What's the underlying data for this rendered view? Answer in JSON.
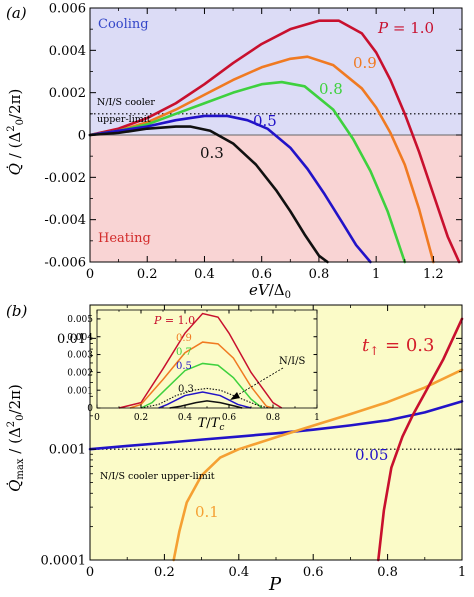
{
  "chart_data": [
    {
      "type": "line",
      "panel_label": "(a)",
      "xlabel": "eV/Δ₀",
      "ylabel": "Q̇ / (Δ₀²/2π)",
      "xlim": [
        0,
        1.3
      ],
      "ylim": [
        -0.006,
        0.006
      ],
      "x_ticks": [
        "0",
        "0.2",
        "0.4",
        "0.6",
        "0.8",
        "1",
        "1.2"
      ],
      "x_tick_values": [
        0,
        0.2,
        0.4,
        0.6,
        0.8,
        1.0,
        1.2
      ],
      "y_ticks": [
        "-0.006",
        "-0.004",
        "-0.002",
        "0",
        "0.002",
        "0.004",
        "0.006"
      ],
      "y_tick_values": [
        -0.006,
        -0.004,
        -0.002,
        0,
        0.002,
        0.004,
        0.006
      ],
      "regions": [
        {
          "label": "Cooling",
          "y_from": 0,
          "y_to": 0.006,
          "color": "#dcdcf6",
          "label_color": "#3346c8"
        },
        {
          "label": "Heating",
          "y_from": -0.006,
          "y_to": 0,
          "color": "#f9d4d4",
          "label_color": "#d22a2a"
        }
      ],
      "reference_line": {
        "y": 0.001,
        "style": "dotted",
        "label_line1": "N/I/S cooler",
        "label_line2": "upper-limit"
      },
      "series": [
        {
          "name": "P = 1.0",
          "color": "#c8102e",
          "x": [
            0,
            0.1,
            0.2,
            0.3,
            0.4,
            0.5,
            0.6,
            0.7,
            0.8,
            0.87,
            0.95,
            1.0,
            1.05,
            1.1,
            1.15,
            1.2,
            1.25,
            1.29
          ],
          "y": [
            0,
            0.0003,
            0.0008,
            0.0015,
            0.0024,
            0.0034,
            0.0043,
            0.005,
            0.0054,
            0.0054,
            0.0048,
            0.0039,
            0.0026,
            0.001,
            -0.0008,
            -0.0028,
            -0.0048,
            -0.006
          ]
        },
        {
          "name": "0.9",
          "color": "#f07a22",
          "x": [
            0,
            0.1,
            0.2,
            0.3,
            0.4,
            0.5,
            0.6,
            0.7,
            0.76,
            0.85,
            0.95,
            1.0,
            1.05,
            1.1,
            1.15,
            1.2
          ],
          "y": [
            0,
            0.0002,
            0.0006,
            0.0012,
            0.0019,
            0.0026,
            0.0032,
            0.0036,
            0.0037,
            0.0033,
            0.0022,
            0.0013,
            0.0001,
            -0.0014,
            -0.0035,
            -0.006
          ]
        },
        {
          "name": "0.8",
          "color": "#3ed13e",
          "x": [
            0,
            0.1,
            0.2,
            0.3,
            0.4,
            0.5,
            0.6,
            0.67,
            0.75,
            0.85,
            0.92,
            0.98,
            1.04,
            1.1
          ],
          "y": [
            0,
            0.0002,
            0.0005,
            0.001,
            0.0015,
            0.002,
            0.0024,
            0.0025,
            0.0023,
            0.0012,
            -0.0002,
            -0.0017,
            -0.0036,
            -0.006
          ]
        },
        {
          "name": "0.5",
          "color": "#2213c8",
          "x": [
            0,
            0.1,
            0.2,
            0.3,
            0.4,
            0.48,
            0.55,
            0.62,
            0.7,
            0.76,
            0.82,
            0.88,
            0.93,
            0.98
          ],
          "y": [
            0,
            0.0002,
            0.0004,
            0.0007,
            0.0009,
            0.0009,
            0.0007,
            0.0003,
            -0.0006,
            -0.0016,
            -0.0028,
            -0.0041,
            -0.0052,
            -0.006
          ]
        },
        {
          "name": "0.3",
          "color": "#111111",
          "x": [
            0,
            0.1,
            0.2,
            0.3,
            0.35,
            0.42,
            0.5,
            0.58,
            0.65,
            0.7,
            0.75,
            0.8,
            0.83
          ],
          "y": [
            0,
            0.0001,
            0.0003,
            0.0004,
            0.0004,
            0.0002,
            -0.0004,
            -0.0014,
            -0.0026,
            -0.0036,
            -0.0047,
            -0.0057,
            -0.006
          ]
        }
      ]
    },
    {
      "type": "line",
      "panel_label": "(b)",
      "xlabel": "P",
      "ylabel": "Q̇max / (Δ₀²/2π)",
      "xlim": [
        0,
        1
      ],
      "ylim": [
        0.0001,
        0.02
      ],
      "y_scale": "log",
      "x_ticks": [
        "0",
        "0.2",
        "0.4",
        "0.6",
        "0.8",
        "1"
      ],
      "x_tick_values": [
        0,
        0.2,
        0.4,
        0.6,
        0.8,
        1.0
      ],
      "y_ticks": [
        "0.0001",
        "0.001",
        "0.01"
      ],
      "y_tick_values": [
        0.0001,
        0.001,
        0.01
      ],
      "background": "#fbfbc8",
      "annotation": "t↑ = 0.3",
      "reference_line": {
        "y": 0.001,
        "style": "dotted",
        "label": "N/I/S cooler upper-limit"
      },
      "series": [
        {
          "name": "0.05",
          "color": "#2213c8",
          "x": [
            0,
            0.1,
            0.2,
            0.3,
            0.4,
            0.5,
            0.6,
            0.7,
            0.8,
            0.9,
            1.0
          ],
          "y": [
            0.001,
            0.00107,
            0.00114,
            0.00122,
            0.0013,
            0.00139,
            0.0015,
            0.00164,
            0.00182,
            0.00215,
            0.0027
          ]
        },
        {
          "name": "0.1",
          "color": "#f5a033",
          "x": [
            0.225,
            0.24,
            0.26,
            0.3,
            0.35,
            0.4,
            0.5,
            0.6,
            0.7,
            0.8,
            0.9,
            1.0
          ],
          "y": [
            0.0001,
            0.00018,
            0.00033,
            0.00058,
            0.00084,
            0.001,
            0.00128,
            0.00163,
            0.00207,
            0.00266,
            0.0036,
            0.0052
          ]
        },
        {
          "name": "",
          "color": "#c8102e",
          "x": [
            0.775,
            0.79,
            0.81,
            0.84,
            0.87,
            0.9,
            0.95,
            1.0
          ],
          "y": [
            0.0001,
            0.00028,
            0.00068,
            0.0013,
            0.0021,
            0.0032,
            0.0065,
            0.015
          ]
        }
      ],
      "inset": {
        "xlabel": "T/Tc",
        "xlim": [
          0,
          1
        ],
        "ylim": [
          0,
          0.0055
        ],
        "x_ticks": [
          "0",
          "0.2",
          "0.4",
          "0.6",
          "0.8",
          "1"
        ],
        "x_tick_values": [
          0,
          0.2,
          0.4,
          0.6,
          0.8,
          1.0
        ],
        "y_ticks": [
          "0",
          "0.001",
          "0.002",
          "0.003",
          "0.004",
          "0.005"
        ],
        "y_tick_values": [
          0,
          0.001,
          0.002,
          0.003,
          0.004,
          0.005
        ],
        "reference_label": "N/I/S",
        "series": [
          {
            "name": "P = 1.0",
            "color": "#c8102e",
            "x": [
              0.1,
              0.2,
              0.3,
              0.4,
              0.48,
              0.55,
              0.6,
              0.7,
              0.8,
              0.84
            ],
            "y": [
              0,
              0.0003,
              0.0022,
              0.0042,
              0.0053,
              0.0051,
              0.0042,
              0.002,
              0.0003,
              0
            ]
          },
          {
            "name": "0.9",
            "color": "#f07a22",
            "x": [
              0.15,
              0.2,
              0.3,
              0.4,
              0.48,
              0.55,
              0.62,
              0.7,
              0.77,
              0.8
            ],
            "y": [
              0,
              0.0002,
              0.0016,
              0.0031,
              0.0037,
              0.0036,
              0.0028,
              0.0012,
              0.0001,
              0
            ]
          },
          {
            "name": "0.7",
            "color": "#3ed13e",
            "x": [
              0.2,
              0.25,
              0.3,
              0.4,
              0.48,
              0.55,
              0.62,
              0.7,
              0.75
            ],
            "y": [
              0,
              0.0003,
              0.0009,
              0.0021,
              0.0025,
              0.0024,
              0.0017,
              0.0005,
              0
            ]
          },
          {
            "name": "0.5",
            "color": "#2213c8",
            "x": [
              0.28,
              0.32,
              0.4,
              0.48,
              0.56,
              0.64,
              0.7
            ],
            "y": [
              0,
              0.0002,
              0.0007,
              0.0009,
              0.0007,
              0.0002,
              0
            ]
          },
          {
            "name": "0.3",
            "color": "#111111",
            "x": [
              0.33,
              0.38,
              0.45,
              0.5,
              0.56,
              0.63,
              0.66
            ],
            "y": [
              0,
              0.0001,
              0.0003,
              0.0004,
              0.0003,
              0.0001,
              0
            ]
          },
          {
            "name": "",
            "color": "#111111",
            "dashed": true,
            "x": [
              0.2,
              0.28,
              0.36,
              0.44,
              0.5,
              0.56,
              0.64,
              0.72,
              0.78
            ],
            "y": [
              0,
              0.0002,
              0.0007,
              0.001,
              0.0011,
              0.001,
              0.0006,
              0.0002,
              0
            ]
          }
        ]
      }
    }
  ]
}
